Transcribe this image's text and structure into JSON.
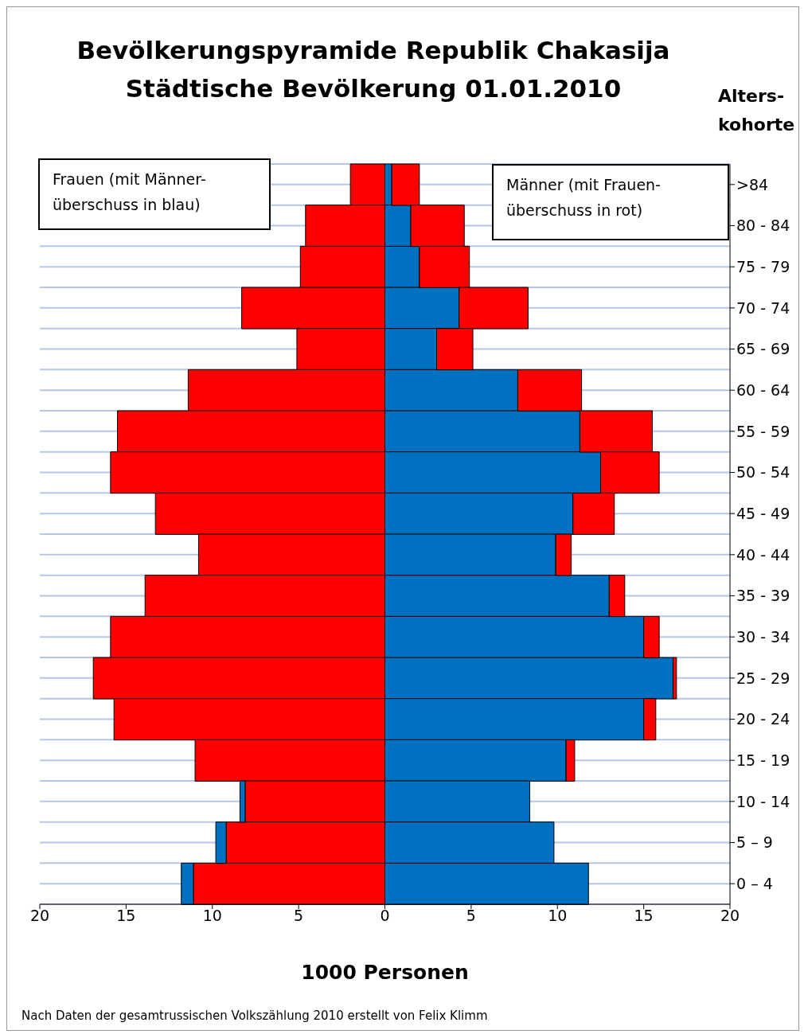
{
  "chart_data": {
    "type": "bar",
    "orientation": "horizontal",
    "stacked": true,
    "title": "Bevölkerungspyramide Republik Chakasija",
    "subtitle": "Städtische Bevölkerung 01.01.2010",
    "xlabel": "1000 Personen",
    "ylabel": "Alters- kohorte",
    "annotations": [
      "Frauen (mit Männer-überschuss in blau)",
      "Männer (mit Frauen-überschuss in rot)",
      "Nach Daten der gesamtrussischen Volkszählung 2010 erstellt von Felix Klimm"
    ],
    "categories": [
      ">84",
      "80 - 84",
      "75 - 79",
      "70 - 74",
      "65 - 69",
      "60 - 64",
      "55 - 59",
      "50 - 54",
      "45 - 49",
      "40 - 44",
      "35 - 39",
      "30 - 34",
      "25 - 29",
      "20 - 24",
      "15 - 19",
      "10 - 14",
      "5 – 9",
      "0 – 4"
    ],
    "series": [
      {
        "color": "#ff0000",
        "values": [
          -2.0,
          -4.6,
          -4.9,
          -8.3,
          -5.1,
          -11.4,
          -15.5,
          -15.9,
          -13.3,
          -10.8,
          -13.9,
          -15.9,
          -16.9,
          -15.7,
          -11.0,
          -8.1,
          -9.2,
          -11.1
        ]
      },
      {
        "color": "#0070c0",
        "values": [
          null,
          null,
          null,
          null,
          null,
          null,
          null,
          null,
          null,
          null,
          null,
          null,
          null,
          null,
          null,
          -0.3,
          -0.6,
          -0.7
        ]
      },
      {
        "color": "#0070c0",
        "values": [
          0.4,
          1.5,
          2.0,
          4.3,
          3.0,
          7.7,
          11.3,
          12.5,
          10.9,
          9.9,
          13.0,
          15.0,
          16.7,
          15.0,
          10.5,
          8.4,
          9.8,
          11.8
        ]
      },
      {
        "color": "#ff0000",
        "values": [
          1.6,
          3.1,
          2.9,
          4.0,
          2.1,
          3.7,
          4.2,
          3.4,
          2.4,
          0.9,
          0.9,
          0.9,
          0.2,
          0.7,
          0.5,
          null,
          null,
          null
        ]
      }
    ],
    "xlim": [
      -20,
      20
    ],
    "xticks": [
      {
        "value": -20,
        "label": "20"
      },
      {
        "value": -15,
        "label": "15"
      },
      {
        "value": -10,
        "label": "10"
      },
      {
        "value": -5,
        "label": "5"
      },
      0,
      5,
      10,
      15,
      20
    ],
    "grid": "y"
  }
}
